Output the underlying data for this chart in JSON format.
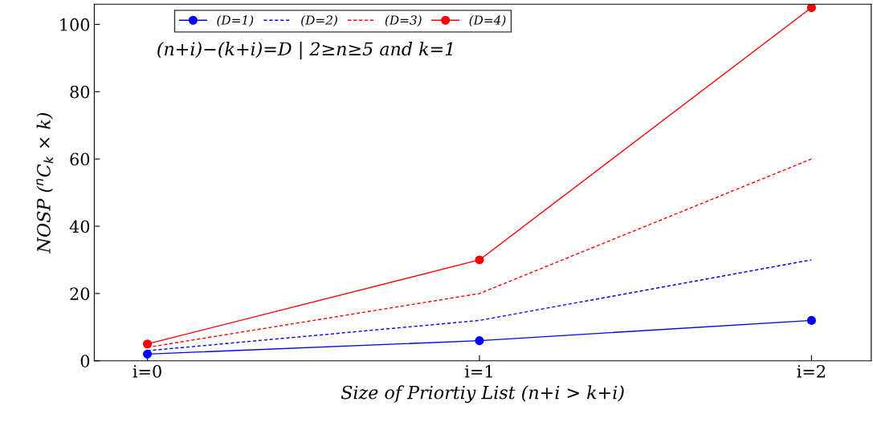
{
  "chart_data": {
    "type": "line",
    "xlabel": "Size of Priortiy List (n+i > k+i)",
    "ylabel": "NOSP ($^{n}$C$_{k}$ × k)",
    "x": [
      0,
      1,
      2
    ],
    "xlim": [
      -0.16,
      2.18
    ],
    "xticks": [
      {
        "value": 0,
        "label": "i=0"
      },
      {
        "value": 1,
        "label": "i=1"
      },
      {
        "value": 2,
        "label": "i=2"
      }
    ],
    "ylim": [
      0,
      106
    ],
    "yticks": [
      0,
      20,
      40,
      60,
      80,
      100
    ],
    "grid": false,
    "legend": "top",
    "annotations": [
      "(n+i)−(k+i)=D | 2≥n≥5 and k=1"
    ],
    "series": [
      {
        "name": "(D=1)",
        "color": "#0000ff",
        "values": [
          2,
          6,
          12
        ],
        "marker": "circle",
        "line_style": "solid"
      },
      {
        "name": "(D=2)",
        "color": "#0000ff",
        "values": [
          3,
          12,
          30
        ],
        "marker": "none",
        "line_style": "dashed"
      },
      {
        "name": "(D=3)",
        "color": "#ff0000",
        "values": [
          4,
          20,
          60
        ],
        "marker": "none",
        "line_style": "dashed"
      },
      {
        "name": "(D=4)",
        "color": "#ff0000",
        "values": [
          5,
          30,
          105
        ],
        "marker": "circle",
        "line_style": "solid"
      }
    ]
  }
}
